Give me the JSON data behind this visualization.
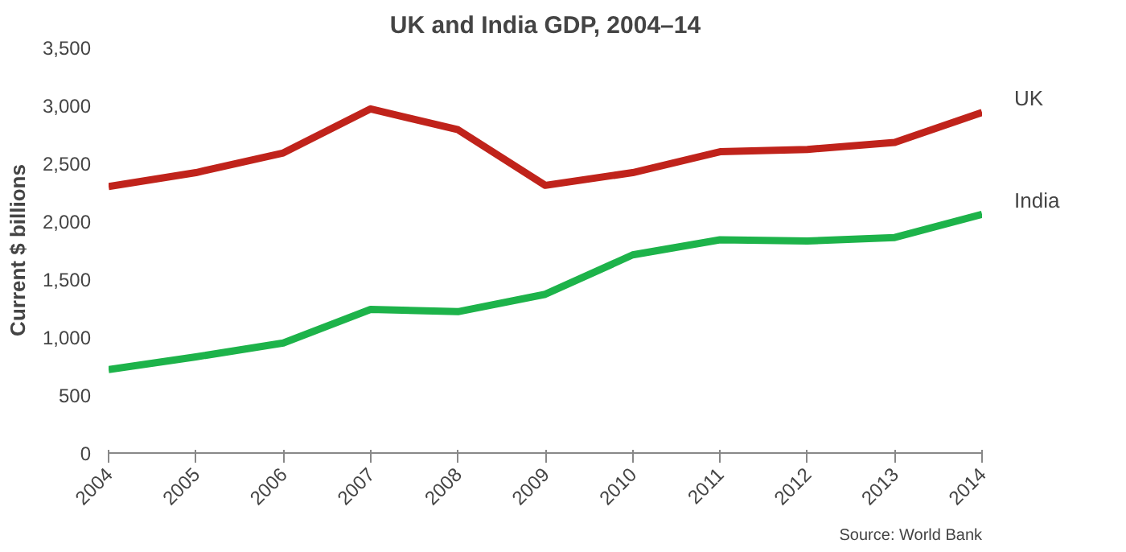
{
  "chart_data": {
    "type": "line",
    "title": "UK and India GDP, 2004–14",
    "ylabel": "Current $ billions",
    "x": [
      2004,
      2005,
      2006,
      2007,
      2008,
      2009,
      2010,
      2011,
      2012,
      2013,
      2014
    ],
    "xlim": [
      2004,
      2014
    ],
    "xticks": [
      2004,
      2005,
      2006,
      2007,
      2008,
      2009,
      2010,
      2011,
      2012,
      2013,
      2014
    ],
    "ylim": [
      0,
      3500
    ],
    "yticks": [
      {
        "value": 0,
        "label": "0"
      },
      {
        "value": 500,
        "label": "500"
      },
      {
        "value": 1000,
        "label": "1,000"
      },
      {
        "value": 1500,
        "label": "1,500"
      },
      {
        "value": 2000,
        "label": "2,000"
      },
      {
        "value": 2500,
        "label": "2,500"
      },
      {
        "value": 3000,
        "label": "3,000"
      },
      {
        "value": 3500,
        "label": "3,500"
      }
    ],
    "series": [
      {
        "name": "UK",
        "color": "#c0231b",
        "values": [
          2300,
          2420,
          2590,
          2970,
          2790,
          2310,
          2420,
          2600,
          2620,
          2680,
          2940
        ]
      },
      {
        "name": "India",
        "color": "#1db34a",
        "values": [
          720,
          830,
          950,
          1240,
          1220,
          1370,
          1710,
          1840,
          1830,
          1860,
          2060
        ]
      }
    ],
    "grid": false,
    "marker": "none",
    "line_style": "solid",
    "annotations": [
      "Source: World Bank"
    ]
  }
}
